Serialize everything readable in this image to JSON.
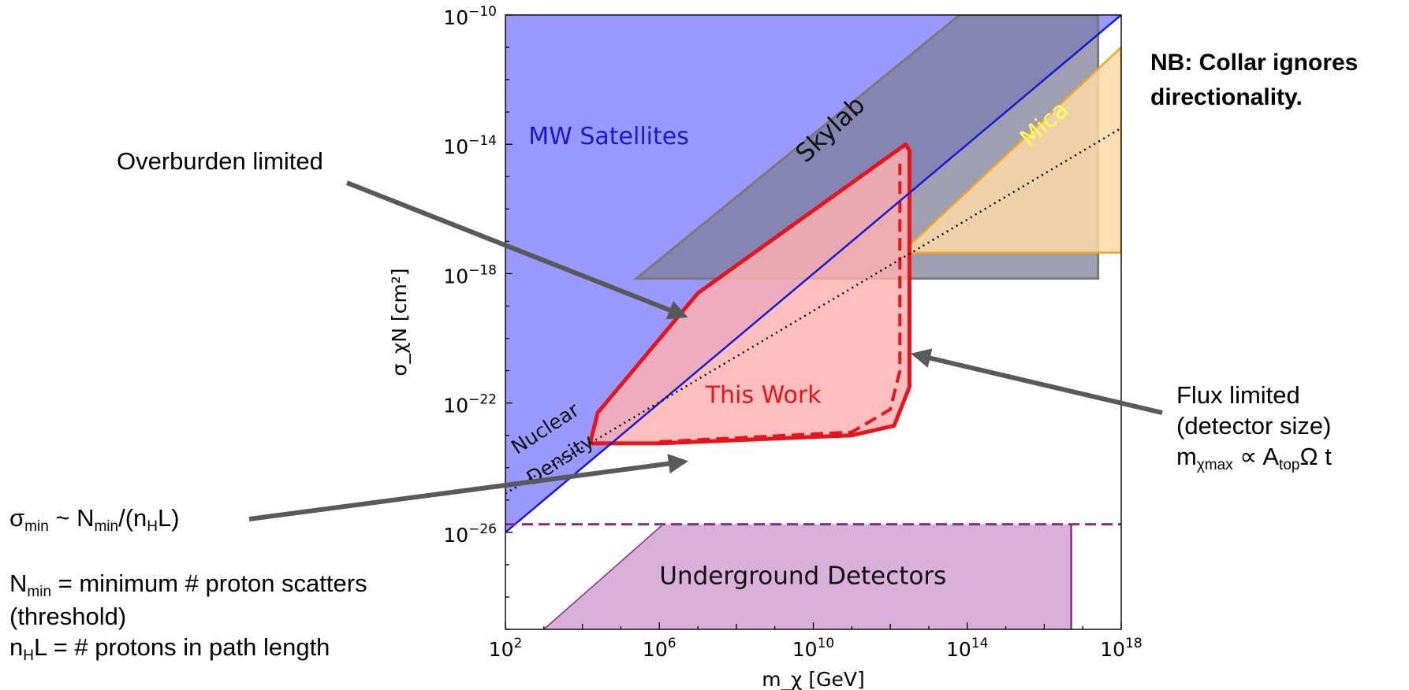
{
  "chart_data": {
    "type": "area",
    "title": "",
    "xlabel": "m_χ [GeV]",
    "ylabel": "σ_χN [cm²]",
    "x_scale": "log10",
    "y_scale": "log10",
    "xlim": [
      100.0,
      1e+18
    ],
    "ylim": [
      1e-29,
      1e-10
    ],
    "x_ticks": [
      100.0,
      1000000.0,
      10000000000.0,
      100000000000000.0,
      1e+18
    ],
    "x_tick_labels": [
      [
        "10",
        "2"
      ],
      [
        "10",
        "6"
      ],
      [
        "10",
        "10"
      ],
      [
        "10",
        "14"
      ],
      [
        "10",
        "18"
      ]
    ],
    "y_ticks": [
      1e-26,
      1e-22,
      1e-18,
      1e-14,
      1e-10
    ],
    "y_tick_labels": [
      [
        "10",
        "−26"
      ],
      [
        "10",
        "−22"
      ],
      [
        "10",
        "−18"
      ],
      [
        "10",
        "−14"
      ],
      [
        "10",
        "−10"
      ]
    ],
    "grid": false,
    "regions": [
      {
        "label": "MW Satellites",
        "fill": "#9999ff",
        "edge": "#1a1ad0",
        "boundary_log10": [
          [
            2,
            -26.0
          ],
          [
            18,
            -10.0
          ],
          [
            2,
            -10.0
          ]
        ]
      },
      {
        "label": "Skylab",
        "fill": "#7f7f9a",
        "edge": "#7a7a7a",
        "boundary_log10": [
          [
            5.4,
            -18.15
          ],
          [
            13.8,
            -10.0
          ],
          [
            17.4,
            -10.0
          ],
          [
            17.4,
            -18.15
          ]
        ]
      },
      {
        "label": "Mica",
        "fill": "#fcd9a7",
        "edge": "#f5a623",
        "label_color": "#ffff55",
        "boundary_log10": [
          [
            12.3,
            -17.35
          ],
          [
            18,
            -11.0
          ],
          [
            18,
            -17.35
          ]
        ]
      },
      {
        "label": "This Work",
        "fill": "#ffb1b1",
        "edge": "#e8141b",
        "boundary_log10": [
          [
            4.2,
            -23.25
          ],
          [
            4.4,
            -22.3
          ],
          [
            7.0,
            -18.6
          ],
          [
            12.4,
            -14.0
          ],
          [
            12.5,
            -14.2
          ],
          [
            12.5,
            -21.5
          ],
          [
            12.1,
            -22.7
          ],
          [
            11.0,
            -23.0
          ],
          [
            6.0,
            -23.25
          ]
        ],
        "dashed_variant_log10": [
          [
            6.0,
            -23.2
          ],
          [
            11.0,
            -22.9
          ],
          [
            12.0,
            -22.2
          ],
          [
            12.25,
            -21.0
          ],
          [
            12.25,
            -14.6
          ]
        ]
      },
      {
        "label": "Underground Detectors",
        "fill": "#d8b0d8",
        "edge": "#8b2c8b",
        "boundary_log10": [
          [
            3.0,
            -29.0
          ],
          [
            6.1,
            -25.75
          ],
          [
            16.7,
            -25.75
          ],
          [
            16.7,
            -29.0
          ]
        ],
        "dashed_limit_log10": -25.75
      }
    ],
    "lines": [
      {
        "label": "Nuclear Density",
        "style": "dotted",
        "color": "#000000",
        "points_log10": [
          [
            2,
            -24.8
          ],
          [
            18,
            -13.5
          ]
        ]
      }
    ]
  },
  "annotations": {
    "overburden": "Overburden limited",
    "flux_line1": "Flux limited",
    "flux_line2": "(detector size)",
    "flux_m": "m",
    "flux_sub_chimax": "χmax",
    "flux_prop": " ∝ A",
    "flux_sub_top": "top",
    "flux_end": "Ω t",
    "sigma_sym": "σ",
    "sigma_sub_min": "min",
    "sigma_mid": " ~ N",
    "sigma_sub_min2": "min",
    "sigma_mid2": "/(n",
    "sigma_sub_h": "H",
    "sigma_end": "L)",
    "nmin_sym": "N",
    "nmin_sub": "min",
    "nmin_rest": " = minimum # proton scatters",
    "threshold": "(threshold)",
    "nh_sym": "n",
    "nh_sub": "H",
    "nh_rest": "L = # protons in path length",
    "nb_line1": "NB: Collar ignores",
    "nb_line2": "directionality."
  },
  "arrow_color": "#595959"
}
